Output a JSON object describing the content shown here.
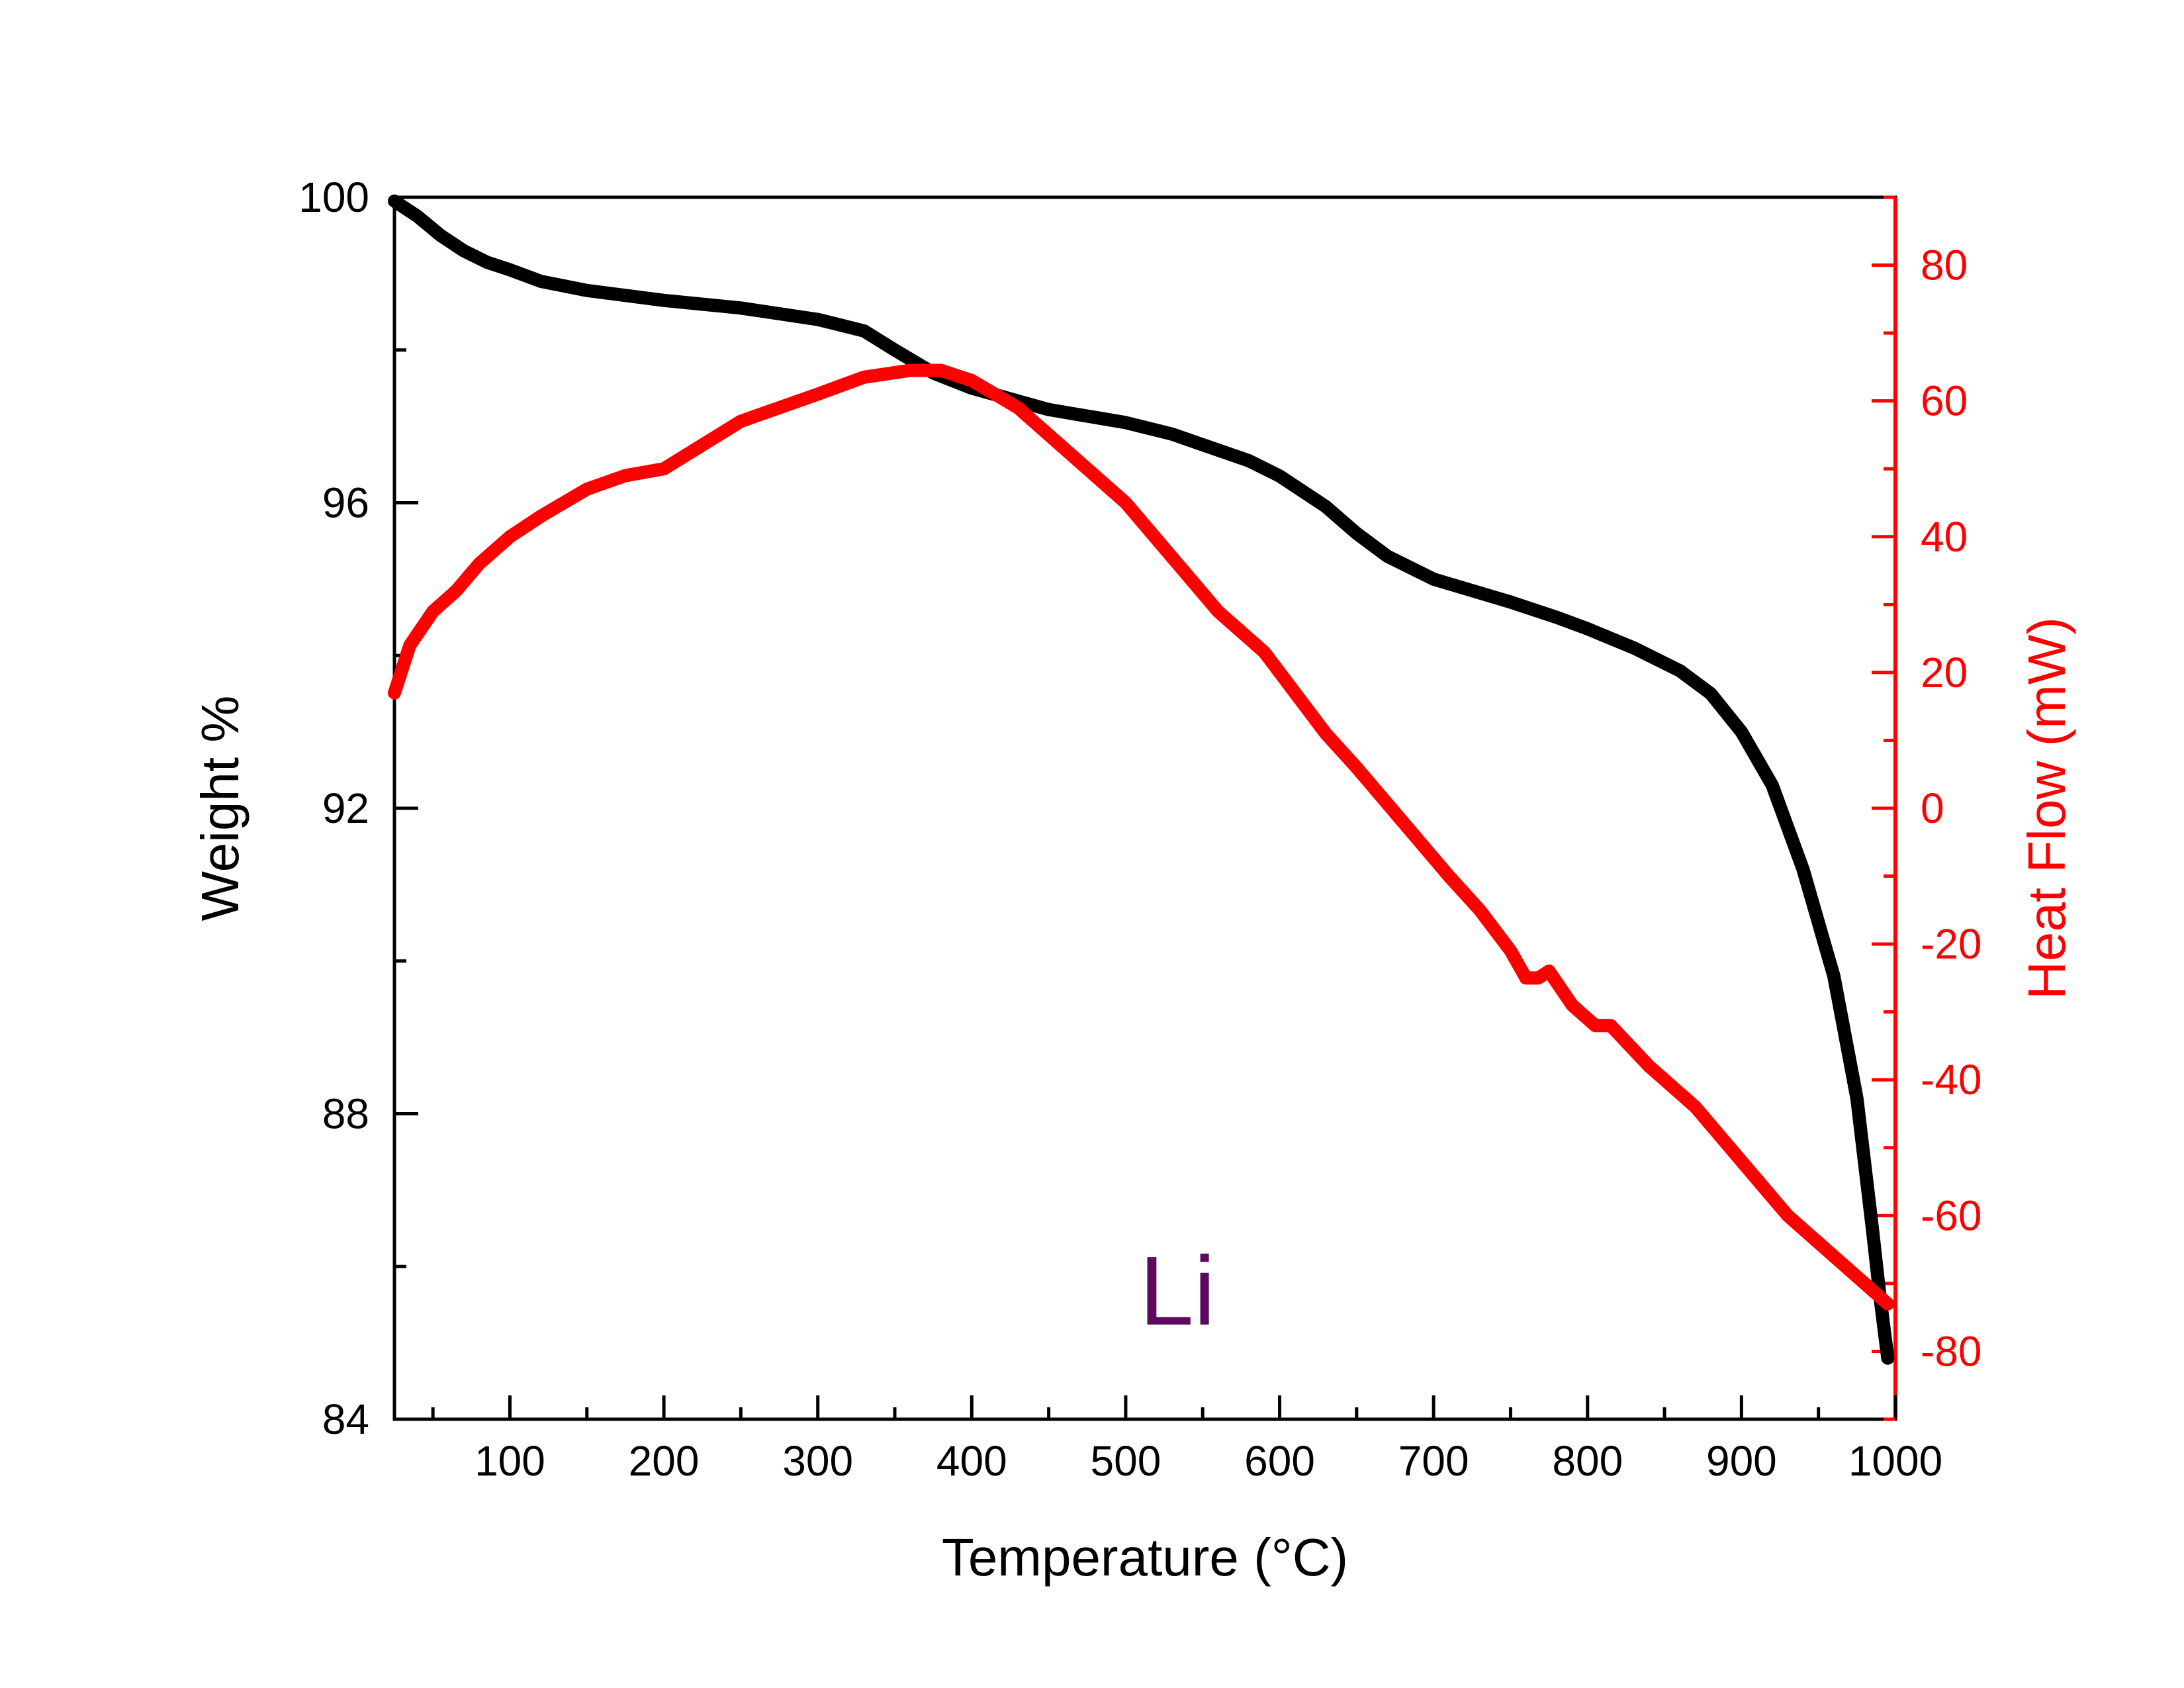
{
  "chart_data": {
    "type": "line",
    "annotation": "Li",
    "xlabel": "Temperature (°C)",
    "ylabel_left": "Weight %",
    "ylabel_right": "Heat Flow (mW)",
    "xlim": [
      25,
      1000
    ],
    "ylim_left": [
      84,
      100
    ],
    "ylim_right": [
      -90,
      90
    ],
    "x_ticks": [
      100,
      200,
      300,
      400,
      500,
      600,
      700,
      800,
      900,
      1000
    ],
    "left_ticks": [
      84,
      88,
      92,
      96,
      100
    ],
    "right_ticks": [
      -80,
      -60,
      -40,
      -20,
      0,
      20,
      40,
      60,
      80
    ],
    "grid": false,
    "colors": {
      "weight": "#000000",
      "heat_flow": "#ff0000",
      "right_axis": "#ff0000",
      "annotation": "#5b0a5e"
    },
    "series": [
      {
        "axis": "left",
        "points": [
          [
            25,
            99.95
          ],
          [
            40,
            99.75
          ],
          [
            55,
            99.5
          ],
          [
            70,
            99.3
          ],
          [
            85,
            99.15
          ],
          [
            100,
            99.05
          ],
          [
            120,
            98.9
          ],
          [
            150,
            98.78
          ],
          [
            200,
            98.65
          ],
          [
            250,
            98.55
          ],
          [
            300,
            98.4
          ],
          [
            330,
            98.25
          ],
          [
            350,
            98.0
          ],
          [
            375,
            97.7
          ],
          [
            400,
            97.5
          ],
          [
            450,
            97.22
          ],
          [
            500,
            97.05
          ],
          [
            530,
            96.9
          ],
          [
            580,
            96.55
          ],
          [
            600,
            96.35
          ],
          [
            630,
            95.95
          ],
          [
            650,
            95.6
          ],
          [
            670,
            95.3
          ],
          [
            700,
            95.0
          ],
          [
            750,
            94.7
          ],
          [
            780,
            94.5
          ],
          [
            800,
            94.35
          ],
          [
            830,
            94.1
          ],
          [
            860,
            93.8
          ],
          [
            880,
            93.5
          ],
          [
            900,
            93.0
          ],
          [
            920,
            92.3
          ],
          [
            940,
            91.2
          ],
          [
            960,
            89.8
          ],
          [
            975,
            88.2
          ],
          [
            985,
            86.5
          ],
          [
            990,
            85.6
          ],
          [
            995,
            84.8
          ]
        ]
      },
      {
        "axis": "right",
        "points": [
          [
            25,
            17
          ],
          [
            35,
            24
          ],
          [
            50,
            29
          ],
          [
            65,
            32
          ],
          [
            80,
            36
          ],
          [
            100,
            40
          ],
          [
            120,
            43
          ],
          [
            150,
            47
          ],
          [
            175,
            49
          ],
          [
            200,
            50
          ],
          [
            250,
            57
          ],
          [
            300,
            61
          ],
          [
            330,
            63.5
          ],
          [
            360,
            64.5
          ],
          [
            380,
            64.5
          ],
          [
            400,
            63
          ],
          [
            430,
            59
          ],
          [
            460,
            53
          ],
          [
            500,
            45
          ],
          [
            530,
            37
          ],
          [
            560,
            29
          ],
          [
            590,
            23
          ],
          [
            610,
            17
          ],
          [
            630,
            11
          ],
          [
            650,
            6
          ],
          [
            680,
            -2
          ],
          [
            710,
            -10
          ],
          [
            730,
            -15
          ],
          [
            750,
            -21
          ],
          [
            760,
            -25
          ],
          [
            768,
            -25
          ],
          [
            775,
            -24
          ],
          [
            790,
            -29
          ],
          [
            805,
            -32
          ],
          [
            815,
            -32
          ],
          [
            840,
            -38
          ],
          [
            870,
            -44
          ],
          [
            900,
            -52
          ],
          [
            930,
            -60
          ],
          [
            960,
            -66
          ],
          [
            985,
            -71
          ],
          [
            995,
            -73
          ]
        ]
      }
    ]
  }
}
